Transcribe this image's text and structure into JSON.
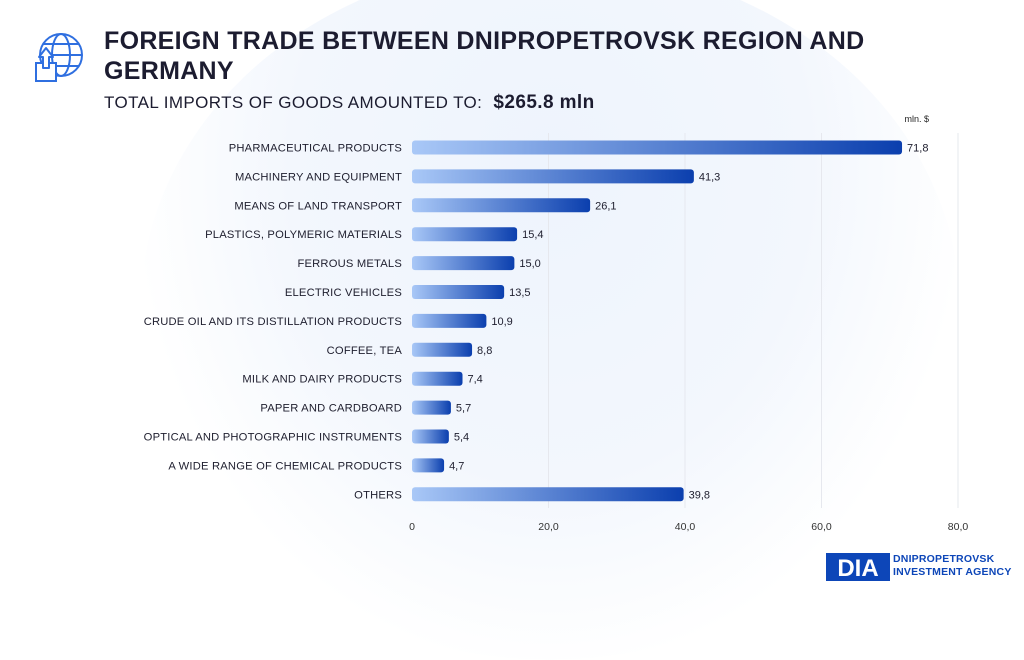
{
  "header": {
    "title": "FOREIGN TRADE BETWEEN DNIPROPETROVSK REGION AND GERMANY",
    "subtitle_prefix": "TOTAL IMPORTS OF GOODS AMOUNTED TO:",
    "subtitle_total": "$265.8  mln",
    "icon": "globe-box-icon"
  },
  "chart_data": {
    "type": "bar",
    "orientation": "horizontal",
    "unit": "mln. $",
    "categories": [
      "PHARMACEUTICAL PRODUCTS",
      "MACHINERY AND EQUIPMENT",
      "MEANS OF LAND TRANSPORT",
      "PLASTICS, POLYMERIC MATERIALS",
      "FERROUS METALS",
      "ELECTRIC VEHICLES",
      "CRUDE OIL AND ITS DISTILLATION PRODUCTS",
      "COFFEE, TEA",
      "MILK AND DAIRY PRODUCTS",
      "PAPER AND CARDBOARD",
      "OPTICAL AND PHOTOGRAPHIC INSTRUMENTS",
      "A WIDE RANGE OF CHEMICAL PRODUCTS",
      "OTHERS"
    ],
    "values": [
      71.8,
      41.3,
      26.1,
      15.4,
      15.0,
      13.5,
      10.9,
      8.8,
      7.4,
      5.7,
      5.4,
      4.7,
      39.8
    ],
    "value_labels": [
      "71,8",
      "41,3",
      "26,1",
      "15,4",
      "15,0",
      "13,5",
      "10,9",
      "8,8",
      "7,4",
      "5,7",
      "5,4",
      "4,7",
      "39,8"
    ],
    "xlim": [
      0,
      80
    ],
    "x_ticks": [
      0,
      20,
      40,
      60,
      80
    ],
    "x_tick_labels": [
      "0",
      "20,0",
      "40,0",
      "60,0",
      "80,0"
    ],
    "grid": true,
    "colors": {
      "bar_start": "#a9c8f7",
      "bar_end": "#0b3fae",
      "grid": "#e6e8ee"
    }
  },
  "brand": {
    "logo_text": "DIA",
    "line1": "DNIPROPETROVSK",
    "line2": "INVESTMENT AGENCY",
    "color": "#0d46b8"
  }
}
